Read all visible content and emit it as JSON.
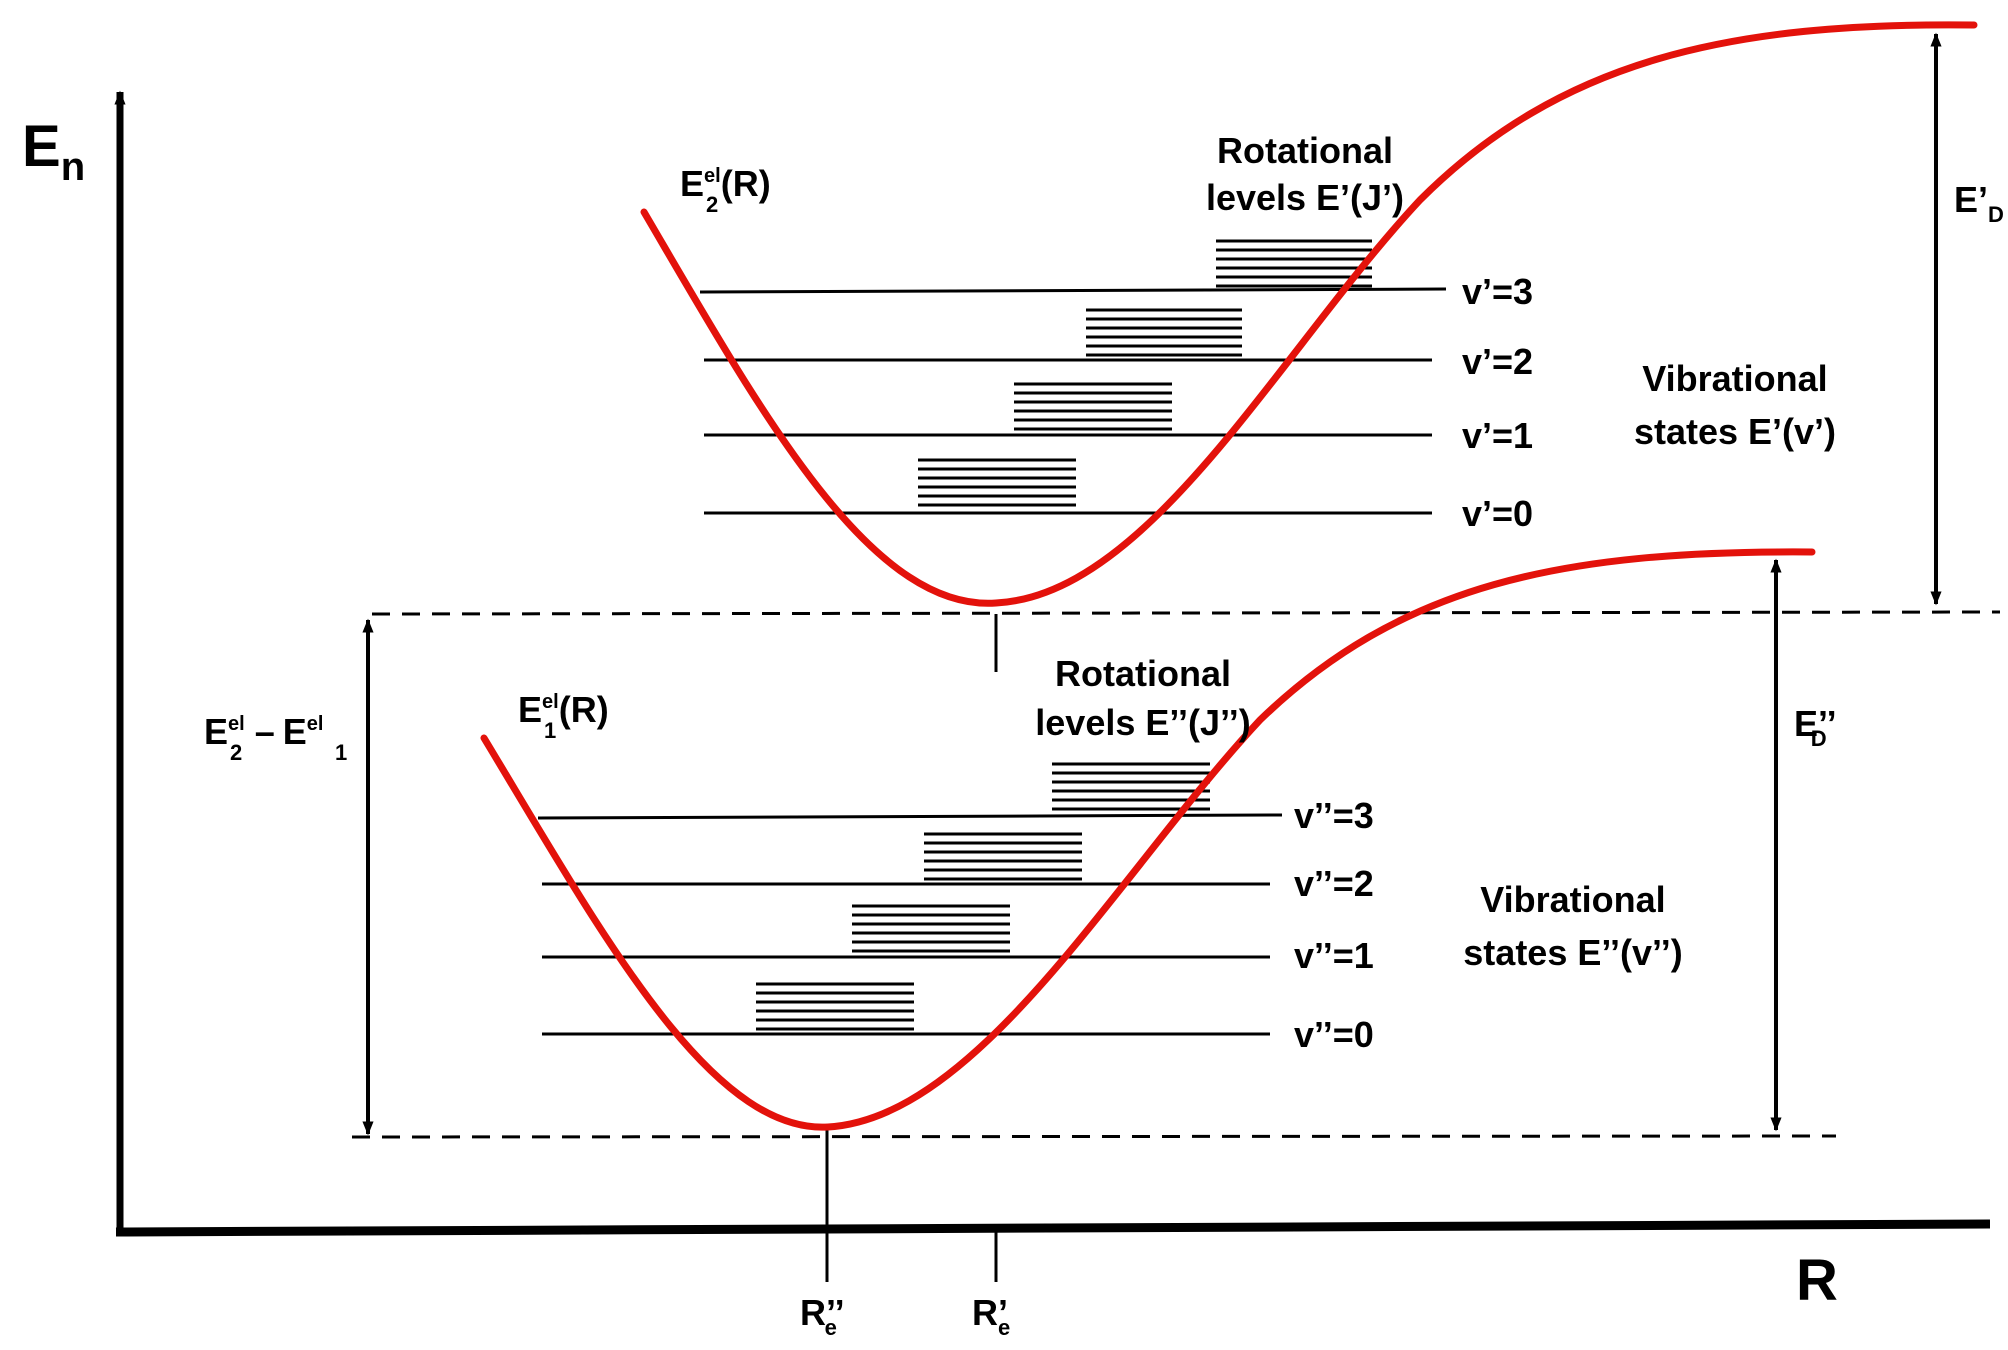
{
  "axes": {
    "y_label": "E",
    "y_label_sub": "n",
    "x_label": "R"
  },
  "upper_state": {
    "curve_label_main": "E",
    "curve_label_sup": "el",
    "curve_label_sub": "2",
    "curve_label_arg": "(R)",
    "rotational_title_1": "Rotational",
    "rotational_title_2": "levels E’(J’)",
    "vibrational_title_1": "Vibrational",
    "vibrational_title_2": "states E’(v’)",
    "levels": [
      "v’=3",
      "v’=2",
      "v’=1",
      "v’=0"
    ],
    "dissociation_main": "E’",
    "dissociation_sub": "D",
    "equilibrium_main": "R’",
    "equilibrium_sub": "e"
  },
  "lower_state": {
    "curve_label_main": "E",
    "curve_label_sup": "el",
    "curve_label_sub": "1",
    "curve_label_arg": "(R)",
    "rotational_title_1": "Rotational",
    "rotational_title_2": "levels E’’(J’’)",
    "vibrational_title_1": "Vibrational",
    "vibrational_title_2": "states E’’(v’’)",
    "levels": [
      "v’’=3",
      "v’’=2",
      "v’’=1",
      "v’’=0"
    ],
    "dissociation_main": "E’’",
    "dissociation_sub": "D",
    "equilibrium_main": "R’’",
    "equilibrium_sub": "e"
  },
  "gap": {
    "e2_main": "E",
    "e2_sup": "el",
    "e2_sub": "2",
    "minus": "–",
    "e1_main": "E",
    "e1_sup": "el",
    "e1_sub": "1"
  },
  "colors": {
    "curve": "#e3120b",
    "ink": "#000000"
  }
}
